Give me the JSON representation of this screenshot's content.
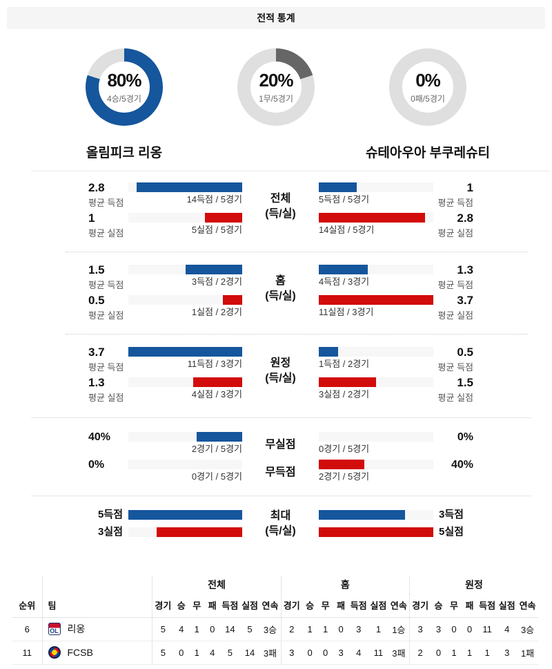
{
  "colors": {
    "blue": "#15569c",
    "red": "#d20b0b",
    "draw_gray": "#666666",
    "donut_track": "#dfdfdf"
  },
  "header": {
    "title": "전적 통계"
  },
  "donuts": [
    {
      "name": "win",
      "percent": "80%",
      "sub": "4승/5경기",
      "value": 80,
      "color": "#15569c"
    },
    {
      "name": "draw",
      "percent": "20%",
      "sub": "1무/5경기",
      "value": 20,
      "color": "#666666"
    },
    {
      "name": "loss",
      "percent": "0%",
      "sub": "0패/5경기",
      "value": 0,
      "color": "#d20b0b"
    }
  ],
  "teams": {
    "home": "올림피크 리옹",
    "away": "슈테아우아 부쿠레슈티"
  },
  "compare": {
    "sections": [
      {
        "center": {
          "line1": "전체",
          "line2": "(득/실)"
        },
        "rows": [
          {
            "left": {
              "value": "2.8",
              "value_sub": "평균 득점",
              "sub": "14득점 / 5경기",
              "pct": 93
            },
            "right": {
              "value": "1",
              "value_sub": "평균 득점",
              "sub": "5득점 / 5경기",
              "pct": 33
            }
          },
          {
            "left": {
              "value": "1",
              "value_sub": "평균 실점",
              "sub": "5실점 / 5경기",
              "pct": 33
            },
            "right": {
              "value": "2.8",
              "value_sub": "평균 실점",
              "sub": "14실점 / 5경기",
              "pct": 93
            }
          }
        ]
      },
      {
        "center": {
          "line1": "홈",
          "line2": "(득/실)"
        },
        "rows": [
          {
            "left": {
              "value": "1.5",
              "value_sub": "평균 득점",
              "sub": "3득점 / 2경기",
              "pct": 50
            },
            "right": {
              "value": "1.3",
              "value_sub": "평균 득점",
              "sub": "4득점 / 3경기",
              "pct": 43
            }
          },
          {
            "left": {
              "value": "0.5",
              "value_sub": "평균 실점",
              "sub": "1실점 / 2경기",
              "pct": 17
            },
            "right": {
              "value": "3.7",
              "value_sub": "평균 실점",
              "sub": "11실점 / 3경기",
              "pct": 100
            }
          }
        ]
      },
      {
        "center": {
          "line1": "원정",
          "line2": "(득/실)"
        },
        "rows": [
          {
            "left": {
              "value": "3.7",
              "value_sub": "평균 득점",
              "sub": "11득점 / 3경기",
              "pct": 100
            },
            "right": {
              "value": "0.5",
              "value_sub": "평균 득점",
              "sub": "1득점 / 2경기",
              "pct": 17
            }
          },
          {
            "left": {
              "value": "1.3",
              "value_sub": "평균 실점",
              "sub": "4실점 / 3경기",
              "pct": 43
            },
            "right": {
              "value": "1.5",
              "value_sub": "평균 실점",
              "sub": "3실점 / 2경기",
              "pct": 50
            }
          }
        ]
      }
    ],
    "percent_rows": [
      {
        "center": "무실점",
        "left": {
          "value": "40%",
          "sub": "2경기 / 5경기",
          "pct": 40
        },
        "right": {
          "value": "0%",
          "sub": "0경기 / 5경기",
          "pct": 0
        }
      },
      {
        "center": "무득점",
        "left": {
          "value": "0%",
          "sub": "0경기 / 5경기",
          "pct": 0
        },
        "right": {
          "value": "40%",
          "sub": "2경기 / 5경기",
          "pct": 40
        }
      }
    ],
    "max_section": {
      "center": {
        "line1": "최대",
        "line2": "(득/실)"
      },
      "rows": [
        {
          "left": {
            "label": "5득점",
            "pct": 100
          },
          "right": {
            "label": "3득점",
            "pct": 75
          }
        },
        {
          "left": {
            "label": "3실점",
            "pct": 75
          },
          "right": {
            "label": "5실점",
            "pct": 100
          }
        }
      ]
    }
  },
  "table": {
    "groups": [
      "전체",
      "홈",
      "원정"
    ],
    "col_headers": {
      "rank": "순위",
      "team": "팀",
      "stats": [
        "경기",
        "승",
        "무",
        "패",
        "득점",
        "실점",
        "연속"
      ]
    },
    "rows": [
      {
        "rank": "6",
        "team": "리옹",
        "overall": [
          "5",
          "4",
          "1",
          "0",
          "14",
          "5",
          "3승"
        ],
        "home": [
          "2",
          "1",
          "1",
          "0",
          "3",
          "1",
          "1승"
        ],
        "away": [
          "3",
          "3",
          "0",
          "0",
          "11",
          "4",
          "3승"
        ]
      },
      {
        "rank": "11",
        "team": "FCSB",
        "overall": [
          "5",
          "0",
          "1",
          "4",
          "5",
          "14",
          "3패"
        ],
        "home": [
          "3",
          "0",
          "0",
          "3",
          "4",
          "11",
          "3패"
        ],
        "away": [
          "2",
          "0",
          "1",
          "1",
          "1",
          "3",
          "1패"
        ]
      }
    ]
  }
}
